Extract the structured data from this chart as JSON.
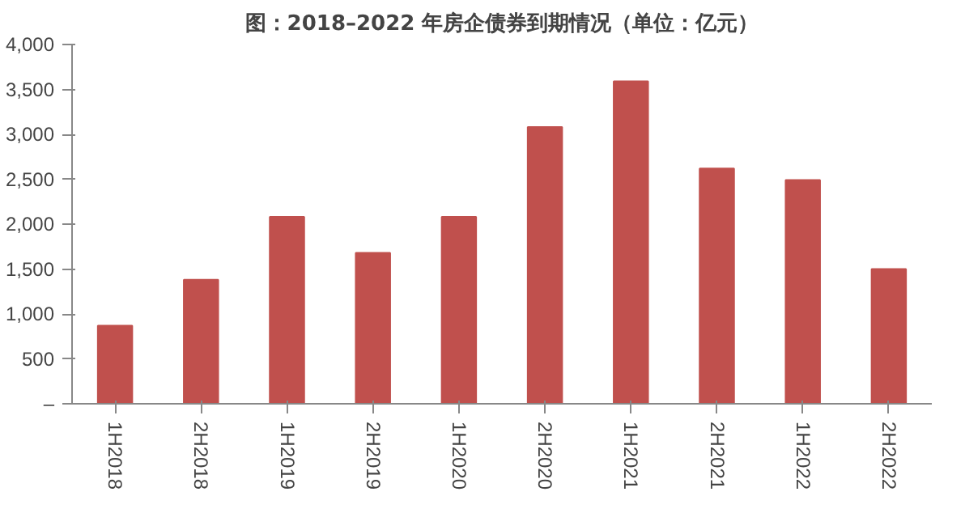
{
  "chart_data": {
    "type": "bar",
    "title": "图：2018–2022 年房企债券到期情况（单位：亿元）",
    "categories": [
      "1H2018",
      "2H2018",
      "1H2019",
      "2H2019",
      "1H2020",
      "2H2020",
      "1H2021",
      "2H2021",
      "1H2022",
      "2H2022"
    ],
    "values": [
      870,
      1380,
      2080,
      1680,
      2080,
      3080,
      3590,
      2620,
      2490,
      1500
    ],
    "color": "#c0504d",
    "ylim": [
      0,
      4000
    ],
    "yticks": [
      {
        "value": 0,
        "label": "–"
      },
      500,
      {
        "value": 1000,
        "label": "1,000"
      },
      {
        "value": 1500,
        "label": "1,500"
      },
      {
        "value": 2000,
        "label": "2,000"
      },
      {
        "value": 2500,
        "label": "2,500"
      },
      {
        "value": 3000,
        "label": "3,000"
      },
      {
        "value": 3500,
        "label": "3,500"
      },
      {
        "value": 4000,
        "label": "4,000"
      }
    ],
    "grid": false
  }
}
